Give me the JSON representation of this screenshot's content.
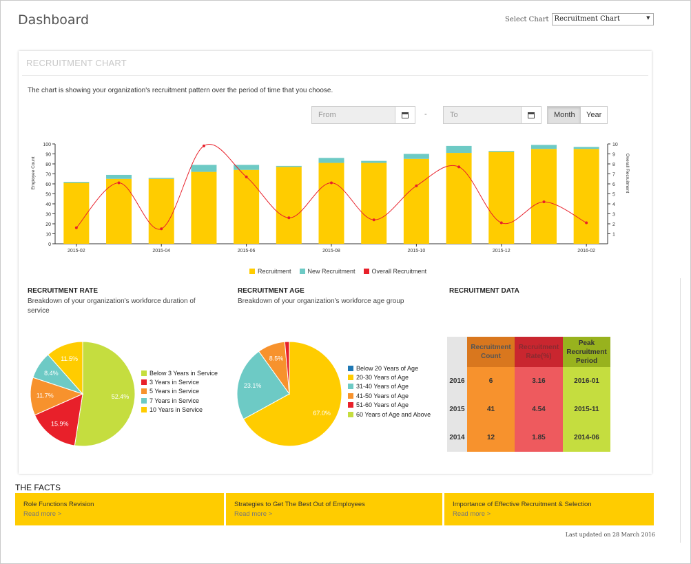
{
  "page": {
    "title": "Dashboard",
    "select_label": "Select Chart",
    "select_value": "Recruitment Chart"
  },
  "card": {
    "title": "RECRUITMENT CHART",
    "description": "The chart is showing your organization's recruitment pattern over the period of time that you choose.",
    "from_placeholder": "From",
    "to_placeholder": "To",
    "dash": "-",
    "toggle_month": "Month",
    "toggle_year": "Year"
  },
  "chart_data": [
    {
      "type": "bar",
      "stacked": true,
      "categories": [
        "2015-02",
        "2015-03",
        "2015-04",
        "2015-05",
        "2015-06",
        "2015-07",
        "2015-08",
        "2015-09",
        "2015-10",
        "2015-11",
        "2015-12",
        "2016-01",
        "2016-02"
      ],
      "x_tick_labels": [
        "2015-02",
        "2015-04",
        "2015-06",
        "2015-08",
        "2015-10",
        "2015-12",
        "2016-02"
      ],
      "series": [
        {
          "name": "Recruitment",
          "values": [
            61,
            65,
            65,
            72,
            74,
            77,
            81,
            81,
            85,
            91,
            92,
            95,
            95
          ],
          "color": "#ffcc00"
        },
        {
          "name": "New Recruitment",
          "values": [
            1,
            4,
            1,
            7,
            5,
            1,
            5,
            2,
            5,
            7,
            1,
            4,
            2
          ],
          "color": "#6dcac5"
        },
        {
          "name": "Overall Recruitment",
          "axis": "right",
          "type": "line",
          "values": [
            1.6,
            6.1,
            1.5,
            9.8,
            6.7,
            2.6,
            6.1,
            2.4,
            5.8,
            7.7,
            2.1,
            4.2,
            2.1
          ],
          "color": "#e8202a"
        }
      ],
      "ylabel": "Employee Count",
      "y2label": "Overall Recruitment",
      "ylim": [
        0,
        100
      ],
      "y_ticks": [
        0,
        10,
        20,
        30,
        40,
        50,
        60,
        70,
        80,
        90,
        100
      ],
      "y2lim": [
        0,
        10
      ],
      "y2_ticks": [
        1,
        2,
        3,
        4,
        5,
        6,
        7,
        8,
        9,
        10
      ],
      "legend": "bottom-center",
      "grid": false
    },
    {
      "type": "pie",
      "slices": [
        {
          "name": "Below 3 Years in Service",
          "value": 52.4,
          "label": "52.4%",
          "color": "#c5dd3f"
        },
        {
          "name": "3 Years in Service",
          "value": 15.9,
          "label": "15.9%",
          "color": "#e8202a"
        },
        {
          "name": "5 Years in Service",
          "value": 11.7,
          "label": "11.7%",
          "color": "#f7922d"
        },
        {
          "name": "7 Years in Service",
          "value": 8.4,
          "label": "8.4%",
          "color": "#6dcac5"
        },
        {
          "name": "10 Years in Service",
          "value": 11.5,
          "label": "11.5%",
          "color": "#ffcc00"
        }
      ]
    },
    {
      "type": "pie",
      "slices": [
        {
          "name": "Below 20 Years of Age",
          "value": 0,
          "label": "",
          "color": "#1f78b4"
        },
        {
          "name": "20-30 Years of Age",
          "value": 67.0,
          "label": "67.0%",
          "color": "#ffcc00"
        },
        {
          "name": "31-40 Years of Age",
          "value": 23.1,
          "label": "23.1%",
          "color": "#6dcac5"
        },
        {
          "name": "41-50 Years of Age",
          "value": 8.5,
          "label": "8.5%",
          "color": "#f7922d"
        },
        {
          "name": "51-60 Years of Age",
          "value": 1.4,
          "label": "",
          "color": "#e8202a"
        },
        {
          "name": "60 Years of Age and Above",
          "value": 0,
          "label": "",
          "color": "#c5dd3f"
        }
      ]
    },
    {
      "type": "table",
      "columns": [
        "",
        "Recruitment Count",
        "Recruitment Rate(%)",
        "Peak Recruitment Period"
      ],
      "rows": [
        [
          "2016",
          "6",
          "3.16",
          "2016-01"
        ],
        [
          "2015",
          "41",
          "4.54",
          "2015-11"
        ],
        [
          "2014",
          "12",
          "1.85",
          "2014-06"
        ]
      ]
    }
  ],
  "sections": {
    "rate_title": "RECRUITMENT RATE",
    "rate_sub": "Breakdown of your organization's workforce duration of service",
    "age_title": "RECRUITMENT AGE",
    "age_sub": "Breakdown of your organization's workforce age group",
    "data_title": "RECRUITMENT DATA"
  },
  "table_header": {
    "c1_line1": "Recruitment",
    "c1_line2": "Count",
    "c2_line1": "Recruitment",
    "c2_line2": "Rate(%)",
    "c3_line1": "Peak",
    "c3_line2": "Recruitment",
    "c3_line3": "Period"
  },
  "facts": {
    "title": "THE FACTS",
    "items": [
      {
        "title": "Role Functions Revision",
        "link": "Read more >"
      },
      {
        "title": "Strategies to Get The Best Out of Employees",
        "link": "Read more >"
      },
      {
        "title": "Importance of Effective Recruitment & Selection",
        "link": "Read more >"
      }
    ],
    "updated": "Last updated on 28 March 2016"
  },
  "colors": {
    "accent": "#ffcc00",
    "teal": "#6dcac5",
    "red": "#e8202a",
    "orange": "#f7922d",
    "lime": "#c5dd3f"
  }
}
